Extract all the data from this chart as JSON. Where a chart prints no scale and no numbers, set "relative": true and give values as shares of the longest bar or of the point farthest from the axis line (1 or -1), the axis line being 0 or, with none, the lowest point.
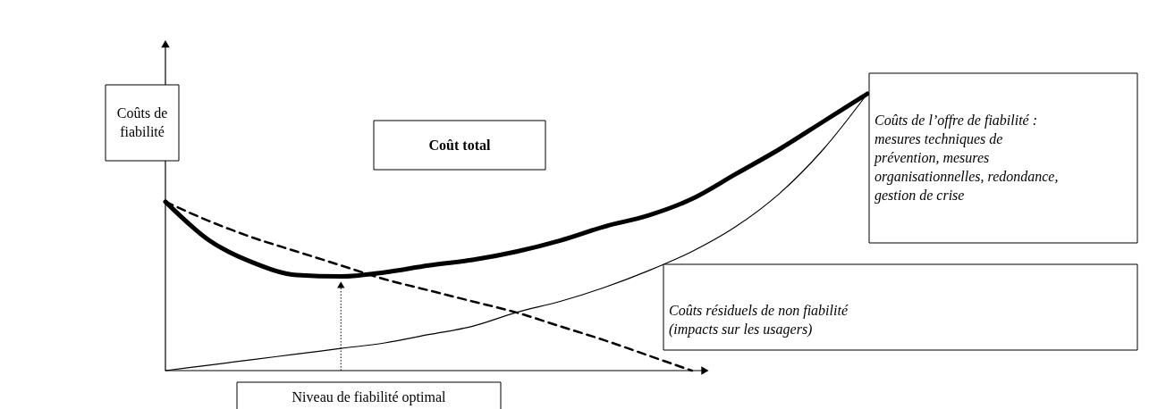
{
  "chart_data": {
    "type": "line",
    "relative": true,
    "ylabel": "Coûts de fiabilité",
    "tick_labels": false,
    "categories": [
      null,
      null,
      null,
      null,
      null,
      null,
      null,
      null,
      null,
      null,
      null,
      null,
      null,
      null,
      null,
      null,
      null
    ],
    "series": [
      {
        "name": "Coût total",
        "color": "#000000",
        "line_style": "solid",
        "values": [
          0.61,
          0.47,
          0.39,
          0.345,
          0.34,
          0.355,
          0.38,
          0.4,
          0.43,
          0.47,
          0.52,
          0.56,
          0.62,
          0.71,
          0.8,
          0.9,
          1.0
        ]
      },
      {
        "name": "Coûts de l’offre de fiabilité : mesures techniques de prévention,  mesures organisationnelles, redondance, gestion de crise",
        "color": "#000000",
        "line_style": "solid",
        "values": [
          0,
          0.02,
          0.04,
          0.06,
          0.08,
          0.1,
          0.13,
          0.16,
          0.21,
          0.25,
          0.3,
          0.36,
          0.43,
          0.52,
          0.64,
          0.8,
          1.0
        ]
      },
      {
        "name": "Coûts résiduels de non fiabilité (impacts sur les usagers)",
        "color": "#000000",
        "line_style": "dashed",
        "values": [
          0.61,
          0.54,
          0.48,
          0.43,
          0.38,
          0.33,
          0.29,
          0.25,
          0.21,
          0.16,
          0.11,
          0.055,
          0,
          null,
          null,
          null,
          null
        ]
      }
    ],
    "annotations": [
      "Niveau de fiabilité optimal"
    ]
  }
}
